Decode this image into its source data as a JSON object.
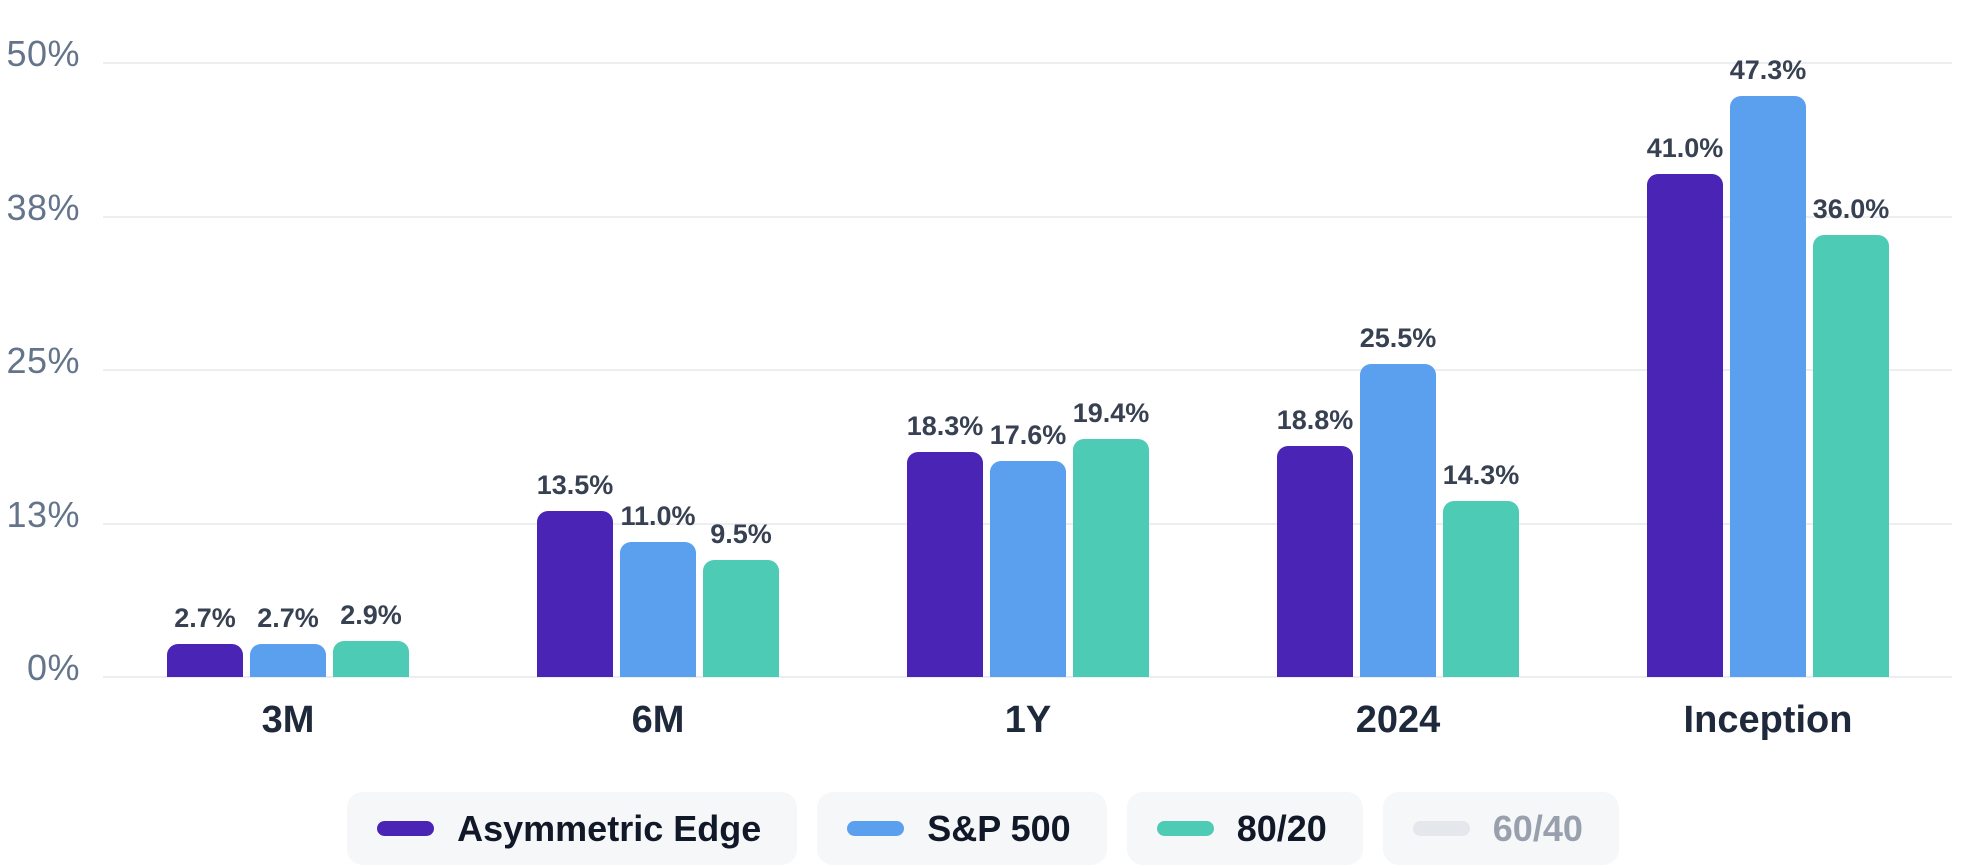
{
  "chart_data": {
    "type": "bar",
    "title": "",
    "categories": [
      "3M",
      "6M",
      "1Y",
      "2024",
      "Inception"
    ],
    "series": [
      {
        "name": "Asymmetric Edge",
        "color": "#4a25b5",
        "active": true,
        "values": [
          2.7,
          13.5,
          18.3,
          18.8,
          41.0
        ],
        "labels": [
          "2.7%",
          "13.5%",
          "18.3%",
          "18.8%",
          "41.0%"
        ]
      },
      {
        "name": "S&P 500",
        "color": "#5ba0ef",
        "active": true,
        "values": [
          2.7,
          11.0,
          17.6,
          25.5,
          47.3
        ],
        "labels": [
          "2.7%",
          "11.0%",
          "17.6%",
          "25.5%",
          "47.3%"
        ]
      },
      {
        "name": "80/20",
        "color": "#4dcbb5",
        "active": true,
        "values": [
          2.9,
          9.5,
          19.4,
          14.3,
          36.0
        ],
        "labels": [
          "2.9%",
          "9.5%",
          "19.4%",
          "14.3%",
          "36.0%"
        ]
      },
      {
        "name": "60/40",
        "color": "#e4e7eb",
        "active": false,
        "values": [],
        "labels": []
      }
    ],
    "y_axis": {
      "min": 0,
      "max": 50,
      "tick_labels": [
        "50%",
        "38%",
        "25%",
        "13%",
        "0%"
      ],
      "tick_values": [
        50,
        37.5,
        25,
        12.5,
        0
      ]
    },
    "grid": true,
    "legend_position": "bottom",
    "value_labels_shown": true
  },
  "colors": {
    "background": "#ffffff",
    "gridline": "#eceef1",
    "y_tick_text": "#64748b",
    "value_label_text": "#374151",
    "category_text": "#1e293b",
    "legend_pill_bg": "#f6f7f9",
    "legend_text": "#111827",
    "legend_inactive_text": "#97a0ac",
    "legend_inactive_swatch": "#e4e7eb"
  }
}
